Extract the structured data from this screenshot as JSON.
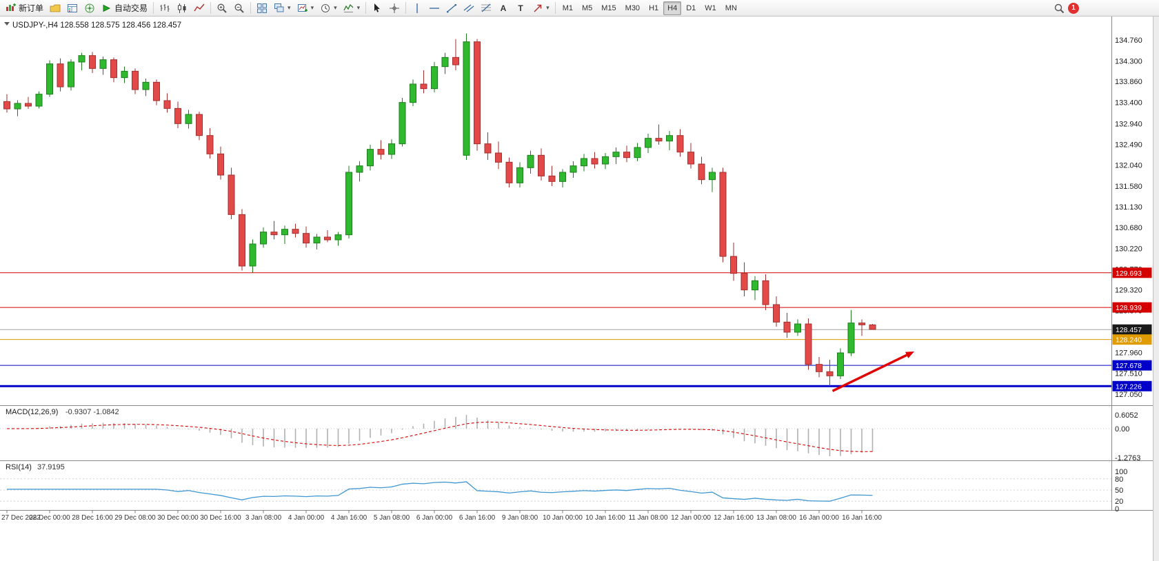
{
  "toolbar": {
    "new_order_label": "新订单",
    "autotrading_label": "自动交易",
    "badge_count": "1",
    "tool_glyphs": {
      "text": "A",
      "label": "T"
    },
    "timeframes": [
      "M1",
      "M5",
      "M15",
      "M30",
      "H1",
      "H4",
      "D1",
      "W1",
      "MN"
    ],
    "active_timeframe": "H4",
    "items": [
      {
        "name": "new-order-button",
        "icon": "new-order",
        "label_key": "new_order_label"
      },
      {
        "name": "profiles-button",
        "icon": "profiles"
      },
      {
        "name": "market-watch-button",
        "icon": "market-watch"
      },
      {
        "name": "navigator-button",
        "icon": "navigator"
      },
      {
        "name": "autotrading-button",
        "icon": "autotrading",
        "label_key": "autotrading_label"
      },
      {
        "sep": true
      },
      {
        "name": "bar-chart-button",
        "icon": "bars"
      },
      {
        "name": "candle-chart-button",
        "icon": "candles"
      },
      {
        "name": "line-chart-button",
        "icon": "linec"
      },
      {
        "sep": true
      },
      {
        "name": "zoom-in-button",
        "icon": "zin"
      },
      {
        "name": "zoom-out-button",
        "icon": "zout"
      },
      {
        "sep": true
      },
      {
        "name": "tile-windows-button",
        "icon": "tile"
      },
      {
        "name": "cascade-windows-button",
        "icon": "cascade",
        "dropdown": true
      },
      {
        "name": "new-chart-button",
        "icon": "newchart",
        "dropdown": true
      },
      {
        "name": "refresh-period-button",
        "icon": "clock",
        "dropdown": true
      },
      {
        "name": "indicators-button",
        "icon": "indicator",
        "dropdown": true
      },
      {
        "sep": true
      },
      {
        "name": "cursor-button",
        "icon": "cursor"
      },
      {
        "name": "crosshair-button",
        "icon": "crosshair"
      },
      {
        "sep": true
      },
      {
        "name": "vertical-line-button",
        "icon": "vline"
      },
      {
        "name": "horizontal-line-button",
        "icon": "hline"
      },
      {
        "name": "trendline-button",
        "icon": "trend"
      },
      {
        "name": "channel-button",
        "icon": "channel"
      },
      {
        "name": "fibonacci-button",
        "icon": "fib"
      },
      {
        "name": "text-button",
        "icon": "text"
      },
      {
        "name": "label-button",
        "icon": "label"
      },
      {
        "name": "arrows-button",
        "icon": "arrowTool",
        "dropdown": true
      },
      {
        "sep": true
      }
    ]
  },
  "chart": {
    "title": "USDJPY-,H4 128.558 128.575 128.456 128.457",
    "symbol": "USDJPY-",
    "period": "H4",
    "ohlc": {
      "open": "128.558",
      "high": "128.575",
      "low": "128.456",
      "close": "128.457"
    },
    "colors": {
      "up": "#2fb92f",
      "up_border": "#1d7d1d",
      "down": "#e24a4a",
      "down_border": "#a32e2e"
    },
    "price_axis": [
      "134.760",
      "134.300",
      "133.860",
      "133.400",
      "132.940",
      "132.490",
      "132.040",
      "131.580",
      "131.130",
      "130.680",
      "130.220",
      "129.770",
      "129.320",
      "128.870",
      "128.410",
      "127.960",
      "127.510",
      "127.050"
    ],
    "price_tags": [
      {
        "label": "129.693",
        "value": 129.693,
        "color": "#d40000"
      },
      {
        "label": "128.939",
        "value": 128.939,
        "color": "#d40000"
      },
      {
        "label": "128.457",
        "value": 128.457,
        "color": "#1a1a1a"
      },
      {
        "label": "128.240",
        "value": 128.24,
        "color": "#e09b00"
      },
      {
        "label": "127.678",
        "value": 127.678,
        "color": "#0000c8"
      },
      {
        "label": "127.226",
        "value": 127.226,
        "color": "#0000c8"
      }
    ],
    "hlines": [
      {
        "price": 129.693,
        "color": "#d40000",
        "width": 1,
        "dash": ""
      },
      {
        "price": 128.939,
        "color": "#d40000",
        "width": 1,
        "dash": ""
      },
      {
        "price": 128.457,
        "color": "#a0a0a0",
        "width": 1,
        "dash": ""
      },
      {
        "price": 128.24,
        "color": "#e09b00",
        "width": 1,
        "dash": ""
      },
      {
        "price": 127.678,
        "color": "#0000c8",
        "width": 1,
        "dash": ""
      },
      {
        "price": 127.226,
        "color": "#0000c8",
        "width": 3,
        "dash": ""
      }
    ]
  },
  "chart_data": {
    "type": "candlestick",
    "symbol": "USDJPY-",
    "timeframe": "H4",
    "bars_per_label": 4,
    "time_labels": [
      "27 Dec 2022",
      "28 Dec 00:00",
      "28 Dec 16:00",
      "29 Dec 08:00",
      "30 Dec 00:00",
      "30 Dec 16:00",
      "3 Jan 08:00",
      "4 Jan 00:00",
      "4 Jan 16:00",
      "5 Jan 08:00",
      "6 Jan 00:00",
      "6 Jan 16:00",
      "9 Jan 08:00",
      "10 Jan 00:00",
      "10 Jan 16:00",
      "11 Jan 08:00",
      "12 Jan 00:00",
      "12 Jan 16:00",
      "13 Jan 08:00",
      "16 Jan 00:00",
      "16 Jan 16:00"
    ],
    "ylim": [
      127.05,
      134.76
    ],
    "candles": [
      [
        133.42,
        133.58,
        133.18,
        133.26
      ],
      [
        133.26,
        133.45,
        133.1,
        133.38
      ],
      [
        133.38,
        133.52,
        133.26,
        133.32
      ],
      [
        133.32,
        133.64,
        133.27,
        133.58
      ],
      [
        133.58,
        134.32,
        133.52,
        134.24
      ],
      [
        134.24,
        134.36,
        133.64,
        133.74
      ],
      [
        133.74,
        134.34,
        133.66,
        134.28
      ],
      [
        134.28,
        134.48,
        134.1,
        134.42
      ],
      [
        134.42,
        134.5,
        134.04,
        134.14
      ],
      [
        134.14,
        134.4,
        134.0,
        134.33
      ],
      [
        134.33,
        134.38,
        133.84,
        133.94
      ],
      [
        133.94,
        134.18,
        133.82,
        134.08
      ],
      [
        134.08,
        134.14,
        133.58,
        133.68
      ],
      [
        133.68,
        133.92,
        133.54,
        133.84
      ],
      [
        133.84,
        133.9,
        133.34,
        133.44
      ],
      [
        133.44,
        133.6,
        133.18,
        133.27
      ],
      [
        133.27,
        133.42,
        132.84,
        132.94
      ],
      [
        132.94,
        133.24,
        132.83,
        133.14
      ],
      [
        133.14,
        133.2,
        132.58,
        132.68
      ],
      [
        132.68,
        132.84,
        132.18,
        132.28
      ],
      [
        132.28,
        132.44,
        131.72,
        131.82
      ],
      [
        131.82,
        131.98,
        130.86,
        130.96
      ],
      [
        130.96,
        131.08,
        129.74,
        129.84
      ],
      [
        129.84,
        130.42,
        129.7,
        130.32
      ],
      [
        130.32,
        130.68,
        130.24,
        130.58
      ],
      [
        130.58,
        130.82,
        130.42,
        130.52
      ],
      [
        130.52,
        130.72,
        130.32,
        130.64
      ],
      [
        130.64,
        130.76,
        130.46,
        130.55
      ],
      [
        130.55,
        130.7,
        130.24,
        130.34
      ],
      [
        130.34,
        130.54,
        130.2,
        130.47
      ],
      [
        130.47,
        130.62,
        130.36,
        130.41
      ],
      [
        130.41,
        130.58,
        130.28,
        130.52
      ],
      [
        130.52,
        132.02,
        130.44,
        131.88
      ],
      [
        131.88,
        132.12,
        131.68,
        132.02
      ],
      [
        132.02,
        132.48,
        131.92,
        132.38
      ],
      [
        132.38,
        132.58,
        132.16,
        132.27
      ],
      [
        132.27,
        132.6,
        132.17,
        132.5
      ],
      [
        132.5,
        133.5,
        132.44,
        133.4
      ],
      [
        133.4,
        133.9,
        133.32,
        133.8
      ],
      [
        133.8,
        134.1,
        133.6,
        133.7
      ],
      [
        133.7,
        134.28,
        133.62,
        134.18
      ],
      [
        134.18,
        134.48,
        134.02,
        134.38
      ],
      [
        134.38,
        134.78,
        134.1,
        134.22
      ],
      [
        132.25,
        134.9,
        132.15,
        134.72
      ],
      [
        134.72,
        134.78,
        132.35,
        132.5
      ],
      [
        132.5,
        132.75,
        132.15,
        132.3
      ],
      [
        132.3,
        132.55,
        131.95,
        132.1
      ],
      [
        132.1,
        132.2,
        131.55,
        131.65
      ],
      [
        131.65,
        132.1,
        131.55,
        131.98
      ],
      [
        131.98,
        132.35,
        131.85,
        132.25
      ],
      [
        132.25,
        132.4,
        131.7,
        131.8
      ],
      [
        131.8,
        132.02,
        131.58,
        131.68
      ],
      [
        131.68,
        131.95,
        131.55,
        131.88
      ],
      [
        131.88,
        132.12,
        131.76,
        132.02
      ],
      [
        132.02,
        132.28,
        131.9,
        132.18
      ],
      [
        132.18,
        132.32,
        131.96,
        132.06
      ],
      [
        132.06,
        132.3,
        131.95,
        132.22
      ],
      [
        132.22,
        132.42,
        132.06,
        132.32
      ],
      [
        132.32,
        132.46,
        132.1,
        132.2
      ],
      [
        132.2,
        132.52,
        132.12,
        132.42
      ],
      [
        132.42,
        132.72,
        132.3,
        132.62
      ],
      [
        132.62,
        132.92,
        132.48,
        132.56
      ],
      [
        132.56,
        132.78,
        132.36,
        132.68
      ],
      [
        132.68,
        132.82,
        132.22,
        132.32
      ],
      [
        132.32,
        132.52,
        131.96,
        132.06
      ],
      [
        132.06,
        132.22,
        131.62,
        131.72
      ],
      [
        131.72,
        131.98,
        131.45,
        131.88
      ],
      [
        131.88,
        131.98,
        129.92,
        130.05
      ],
      [
        130.05,
        130.35,
        129.52,
        129.68
      ],
      [
        129.68,
        129.92,
        129.18,
        129.32
      ],
      [
        129.32,
        129.62,
        129.1,
        129.52
      ],
      [
        129.52,
        129.66,
        128.88,
        129.0
      ],
      [
        129.0,
        129.18,
        128.52,
        128.62
      ],
      [
        128.62,
        128.82,
        128.28,
        128.4
      ],
      [
        128.4,
        128.68,
        128.32,
        128.58
      ],
      [
        128.58,
        128.7,
        127.58,
        127.7
      ],
      [
        127.7,
        127.86,
        127.42,
        127.54
      ],
      [
        127.54,
        127.8,
        127.23,
        127.45
      ],
      [
        127.45,
        128.05,
        127.38,
        127.95
      ],
      [
        127.95,
        128.88,
        127.88,
        128.6
      ],
      [
        128.6,
        128.68,
        128.32,
        128.56
      ],
      [
        128.56,
        128.58,
        128.46,
        128.46
      ]
    ],
    "indicators": [
      {
        "name": "MACD",
        "params": [
          12,
          26,
          9
        ],
        "current": [
          -0.9307,
          -1.0842
        ],
        "scale_labels": [
          0.6052,
          0.0,
          -1.2763
        ]
      },
      {
        "name": "RSI",
        "params": [
          14
        ],
        "current": 37.9195,
        "scale_labels": [
          100,
          80,
          50,
          20,
          0
        ]
      }
    ]
  },
  "macd": {
    "label": "MACD(12,26,9)",
    "values_text": "-0.9307 -1.0842",
    "axis": [
      "0.6052",
      "0.00",
      "-1.2763"
    ],
    "histogram_color": "#b0b0b0",
    "signal_color": "#d40000"
  },
  "rsi": {
    "label": "RSI(14)",
    "value_text": "37.9195",
    "axis": [
      "100",
      "80",
      "50",
      "20",
      "0"
    ],
    "line_color": "#3e96d2"
  },
  "annotations": {
    "arrow": {
      "color": "#e00000",
      "from_bar": 77,
      "from_price": 127.12,
      "to_bar": 84,
      "to_price": 127.98
    }
  }
}
